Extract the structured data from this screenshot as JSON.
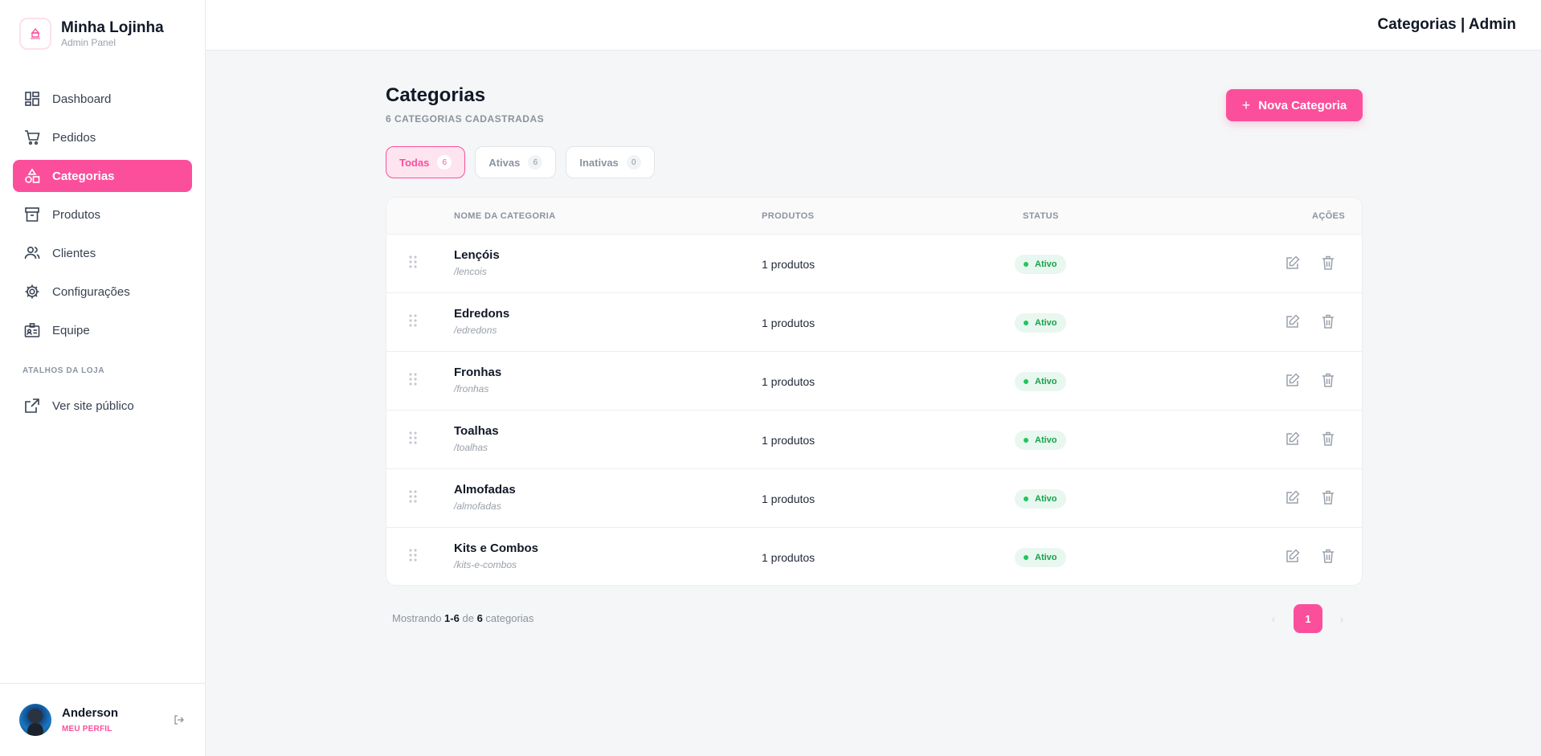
{
  "brand": {
    "name": "Minha Lojinha",
    "subtitle": "Admin Panel"
  },
  "sidebar": {
    "items": [
      {
        "label": "Dashboard",
        "icon": "dashboard-icon",
        "active": false
      },
      {
        "label": "Pedidos",
        "icon": "cart-icon",
        "active": false
      },
      {
        "label": "Categorias",
        "icon": "shapes-icon",
        "active": true
      },
      {
        "label": "Produtos",
        "icon": "archive-icon",
        "active": false
      },
      {
        "label": "Clientes",
        "icon": "users-icon",
        "active": false
      },
      {
        "label": "Configurações",
        "icon": "gear-icon",
        "active": false
      },
      {
        "label": "Equipe",
        "icon": "id-badge-icon",
        "active": false
      }
    ],
    "section_label": "ATALHOS DA LOJA",
    "public_link": {
      "label": "Ver site público",
      "icon": "external-link-icon"
    }
  },
  "profile": {
    "name": "Anderson",
    "link": "MEU PERFIL"
  },
  "header": {
    "title": "Categorias | Admin"
  },
  "main": {
    "title": "Categorias",
    "subtitle": "6 CATEGORIAS CADASTRADAS",
    "new_button": "Nova Categoria",
    "filters": [
      {
        "label": "Todas",
        "count": "6",
        "active": true
      },
      {
        "label": "Ativas",
        "count": "6",
        "active": false
      },
      {
        "label": "Inativas",
        "count": "0",
        "active": false
      }
    ],
    "table": {
      "headers": [
        "NOME DA CATEGORIA",
        "PRODUTOS",
        "STATUS",
        "AÇÕES"
      ],
      "rows": [
        {
          "name": "Lençóis",
          "slug": "/lencois",
          "products": "1 produtos",
          "status": "Ativo"
        },
        {
          "name": "Edredons",
          "slug": "/edredons",
          "products": "1 produtos",
          "status": "Ativo"
        },
        {
          "name": "Fronhas",
          "slug": "/fronhas",
          "products": "1 produtos",
          "status": "Ativo"
        },
        {
          "name": "Toalhas",
          "slug": "/toalhas",
          "products": "1 produtos",
          "status": "Ativo"
        },
        {
          "name": "Almofadas",
          "slug": "/almofadas",
          "products": "1 produtos",
          "status": "Ativo"
        },
        {
          "name": "Kits e Combos",
          "slug": "/kits-e-combos",
          "products": "1 produtos",
          "status": "Ativo"
        }
      ]
    },
    "footer": {
      "prefix": "Mostrando",
      "range": "1-6",
      "of": "de",
      "total": "6",
      "suffix": "categorias"
    },
    "pagination": {
      "prev": "‹",
      "current": "1",
      "next": "›"
    }
  },
  "colors": {
    "accent": "#fb4f9c",
    "status_active": "#16a34a",
    "status_bg": "#e8f7ef"
  }
}
